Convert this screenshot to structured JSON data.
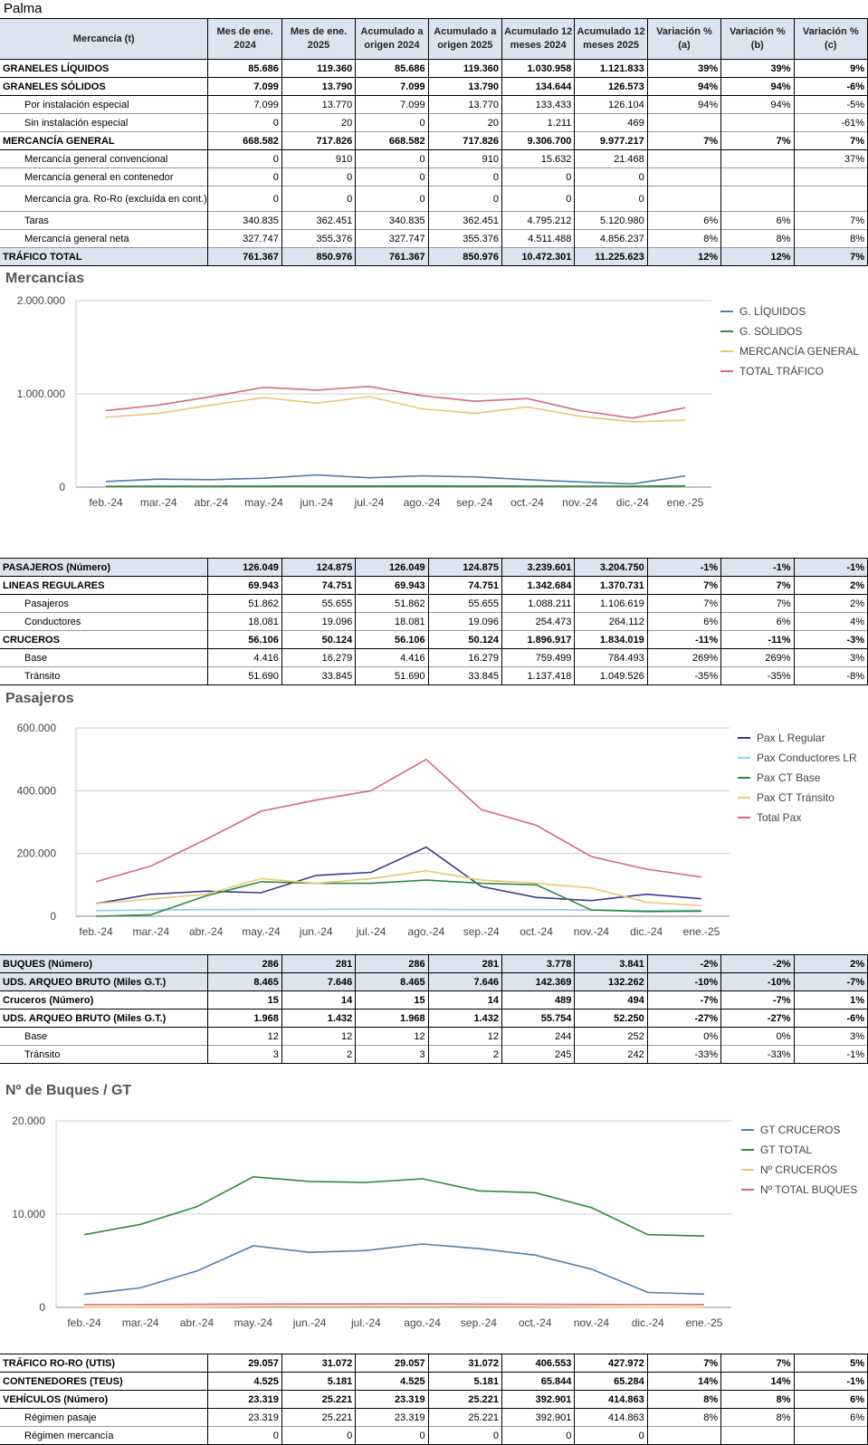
{
  "title": "Palma",
  "columns": [
    "Mercancía (t)",
    "Mes de ene. 2024",
    "Mes de ene. 2025",
    "Acumulado a origen 2024",
    "Acumulado a origen 2025",
    "Acumulado 12 meses 2024",
    "Acumulado 12 meses 2025",
    "Variación % (a)",
    "Variación % (b)",
    "Variación % (c)"
  ],
  "cargo_rows": [
    [
      "GRANELES LÍQUIDOS",
      "85.686",
      "119.360",
      "85.686",
      "119.360",
      "1.030.958",
      "1.121.833",
      "39%",
      "39%",
      "9%"
    ],
    [
      "GRANELES SÓLIDOS",
      "7.099",
      "13.790",
      "7.099",
      "13.790",
      "134.644",
      "126.573",
      "94%",
      "94%",
      "-6%"
    ],
    [
      "Por instalación especial",
      "7.099",
      "13.770",
      "7.099",
      "13.770",
      "133.433",
      "126.104",
      "94%",
      "94%",
      "-5%"
    ],
    [
      "Sin instalación especial",
      "0",
      "20",
      "0",
      "20",
      "1.211",
      "469",
      "",
      "",
      "-61%"
    ],
    [
      "MERCANCÍA GENERAL",
      "668.582",
      "717.826",
      "668.582",
      "717.826",
      "9.306.700",
      "9.977.217",
      "7%",
      "7%",
      "7%"
    ],
    [
      "Mercancía general convencional",
      "0",
      "910",
      "0",
      "910",
      "15.632",
      "21.468",
      "",
      "",
      "37%"
    ],
    [
      "Mercancía general en contenedor",
      "0",
      "0",
      "0",
      "0",
      "0",
      "0",
      "",
      "",
      ""
    ],
    [
      "Mercancía gra. Ro-Ro (excluída en cont.)",
      "0",
      "0",
      "0",
      "0",
      "0",
      "0",
      "",
      "",
      ""
    ],
    [
      "Taras",
      "340.835",
      "362.451",
      "340.835",
      "362.451",
      "4.795.212",
      "5.120.980",
      "6%",
      "6%",
      "7%"
    ],
    [
      "Mercancía general neta",
      "327.747",
      "355.376",
      "327.747",
      "355.376",
      "4.511.488",
      "4.856.237",
      "8%",
      "8%",
      "8%"
    ],
    [
      "TRÁFICO TOTAL",
      "761.367",
      "850.976",
      "761.367",
      "850.976",
      "10.472.301",
      "11.225.623",
      "12%",
      "12%",
      "7%"
    ]
  ],
  "pax_rows": [
    [
      "PASAJEROS (Número)",
      "126.049",
      "124.875",
      "126.049",
      "124.875",
      "3.239.601",
      "3.204.750",
      "-1%",
      "-1%",
      "-1%"
    ],
    [
      "LINEAS REGULARES",
      "69.943",
      "74.751",
      "69.943",
      "74.751",
      "1.342.684",
      "1.370.731",
      "7%",
      "7%",
      "2%"
    ],
    [
      "Pasajeros",
      "51.862",
      "55.655",
      "51.862",
      "55.655",
      "1.088.211",
      "1.106.619",
      "7%",
      "7%",
      "2%"
    ],
    [
      "Conductores",
      "18.081",
      "19.096",
      "18.081",
      "19.096",
      "254.473",
      "264.112",
      "6%",
      "6%",
      "4%"
    ],
    [
      "CRUCEROS",
      "56.106",
      "50.124",
      "56.106",
      "50.124",
      "1.896.917",
      "1.834.019",
      "-11%",
      "-11%",
      "-3%"
    ],
    [
      "Base",
      "4.416",
      "16.279",
      "4.416",
      "16.279",
      "759.499",
      "784.493",
      "269%",
      "269%",
      "3%"
    ],
    [
      "Tránsito",
      "51.690",
      "33.845",
      "51.690",
      "33.845",
      "1.137.418",
      "1.049.526",
      "-35%",
      "-35%",
      "-8%"
    ]
  ],
  "ship_rows": [
    [
      "BUQUES (Número)",
      "286",
      "281",
      "286",
      "281",
      "3.778",
      "3.841",
      "-2%",
      "-2%",
      "2%"
    ],
    [
      "UDS. ARQUEO BRUTO  (Miles G.T.)",
      "8.465",
      "7.646",
      "8.465",
      "7.646",
      "142.369",
      "132.262",
      "-10%",
      "-10%",
      "-7%"
    ],
    [
      "Cruceros (Número)",
      "15",
      "14",
      "15",
      "14",
      "489",
      "494",
      "-7%",
      "-7%",
      "1%"
    ],
    [
      "UDS. ARQUEO BRUTO  (Miles G.T.)",
      "1.968",
      "1.432",
      "1.968",
      "1.432",
      "55.754",
      "52.250",
      "-27%",
      "-27%",
      "-6%"
    ],
    [
      "Base",
      "12",
      "12",
      "12",
      "12",
      "244",
      "252",
      "0%",
      "0%",
      "3%"
    ],
    [
      "Tránsito",
      "3",
      "2",
      "3",
      "2",
      "245",
      "242",
      "-33%",
      "-33%",
      "-1%"
    ]
  ],
  "roro_rows": [
    [
      "TRÁFICO RO-RO (UTIS)",
      "29.057",
      "31.072",
      "29.057",
      "31.072",
      "406.553",
      "427.972",
      "7%",
      "7%",
      "5%"
    ],
    [
      "CONTENEDORES (TEUS)",
      "4.525",
      "5.181",
      "4.525",
      "5.181",
      "65.844",
      "65.284",
      "14%",
      "14%",
      "-1%"
    ],
    [
      "VEHÍCULOS (Número)",
      "23.319",
      "25.221",
      "23.319",
      "25.221",
      "392.901",
      "414.863",
      "8%",
      "8%",
      "6%"
    ],
    [
      "Régimen pasaje",
      "23.319",
      "25.221",
      "23.319",
      "25.221",
      "392.901",
      "414.863",
      "8%",
      "8%",
      "6%"
    ],
    [
      "Régimen mercancía",
      "0",
      "0",
      "0",
      "0",
      "0",
      "0",
      "",
      "",
      ""
    ]
  ],
  "chart_data": [
    {
      "type": "line",
      "title": "Mercancías",
      "categories": [
        "feb.-24",
        "mar.-24",
        "abr.-24",
        "may.-24",
        "jun.-24",
        "jul.-24",
        "ago.-24",
        "sep.-24",
        "oct.-24",
        "nov.-24",
        "dic.-24",
        "ene.-25"
      ],
      "ylim": [
        0,
        2000000
      ],
      "yticks": [
        0,
        1000000,
        2000000
      ],
      "ytick_labels": [
        "0",
        "1.000.000",
        "2.000.000"
      ],
      "series": [
        {
          "name": "G. LÍQUIDOS",
          "color": "#4e7fad",
          "values": [
            60000,
            85000,
            80000,
            95000,
            130000,
            100000,
            120000,
            110000,
            80000,
            55000,
            35000,
            119360
          ]
        },
        {
          "name": "G. SÓLIDOS",
          "color": "#2e8b3a",
          "values": [
            8000,
            9000,
            10000,
            11000,
            12000,
            12000,
            13000,
            12000,
            11000,
            10000,
            9000,
            13790
          ]
        },
        {
          "name": "MERCANCÍA GENERAL",
          "color": "#e8c878",
          "values": [
            750000,
            790000,
            880000,
            960000,
            900000,
            970000,
            840000,
            790000,
            860000,
            760000,
            700000,
            717826
          ]
        },
        {
          "name": "TOTAL TRÁFICO",
          "color": "#d9687a",
          "values": [
            820000,
            880000,
            970000,
            1070000,
            1040000,
            1080000,
            980000,
            920000,
            950000,
            820000,
            740000,
            850976
          ]
        }
      ]
    },
    {
      "type": "line",
      "title": "Pasajeros",
      "categories": [
        "feb.-24",
        "mar.-24",
        "abr.-24",
        "may.-24",
        "jun.-24",
        "jul.-24",
        "ago.-24",
        "sep.-24",
        "oct.-24",
        "nov.-24",
        "dic.-24",
        "ene.-25"
      ],
      "ylim": [
        0,
        600000
      ],
      "yticks": [
        0,
        200000,
        400000,
        600000
      ],
      "ytick_labels": [
        "0",
        "200.000",
        "400.000",
        "600.000"
      ],
      "series": [
        {
          "name": "Pax L Regular",
          "color": "#3a3a8f",
          "values": [
            40000,
            70000,
            80000,
            75000,
            130000,
            140000,
            220000,
            95000,
            60000,
            50000,
            70000,
            55655
          ]
        },
        {
          "name": "Pax Conductores LR",
          "color": "#8fcfef",
          "values": [
            18000,
            20000,
            21000,
            22000,
            22000,
            23000,
            22000,
            21000,
            21000,
            20000,
            18000,
            19096
          ]
        },
        {
          "name": "Pax CT Base",
          "color": "#2e8b3a",
          "values": [
            0,
            5000,
            65000,
            110000,
            105000,
            105000,
            115000,
            105000,
            100000,
            20000,
            15000,
            16279
          ]
        },
        {
          "name": "Pax CT Tránsito",
          "color": "#e8c878",
          "values": [
            40000,
            55000,
            70000,
            120000,
            105000,
            120000,
            145000,
            115000,
            105000,
            90000,
            45000,
            33845
          ]
        },
        {
          "name": "Total Pax",
          "color": "#d9687a",
          "values": [
            110000,
            160000,
            245000,
            335000,
            370000,
            400000,
            500000,
            340000,
            290000,
            190000,
            150000,
            124875
          ]
        }
      ]
    },
    {
      "type": "line",
      "title": "Nº de Buques / GT",
      "categories": [
        "feb.-24",
        "mar.-24",
        "abr.-24",
        "may.-24",
        "jun.-24",
        "jul.-24",
        "ago.-24",
        "sep.-24",
        "oct.-24",
        "nov.-24",
        "dic.-24",
        "ene.-25"
      ],
      "ylim": [
        0,
        20000
      ],
      "yticks": [
        0,
        10000,
        20000
      ],
      "ytick_labels": [
        "0",
        "10.000",
        "20.000"
      ],
      "series": [
        {
          "name": "GT CRUCEROS",
          "color": "#4e7fad",
          "values": [
            1400,
            2100,
            3900,
            6600,
            5900,
            6100,
            6800,
            6300,
            5600,
            4100,
            1600,
            1432
          ]
        },
        {
          "name": "GT TOTAL",
          "color": "#2e8b3a",
          "values": [
            7800,
            8900,
            10800,
            14000,
            13500,
            13400,
            13800,
            12500,
            12300,
            10700,
            7800,
            7646
          ]
        },
        {
          "name": "Nº CRUCEROS",
          "color": "#e8c878",
          "values": [
            20,
            30,
            60,
            100,
            90,
            95,
            100,
            95,
            90,
            60,
            20,
            14
          ]
        },
        {
          "name": "Nº TOTAL BUQUES",
          "color": "#d9687a",
          "values": [
            280,
            300,
            330,
            350,
            360,
            360,
            370,
            350,
            340,
            310,
            290,
            281
          ]
        }
      ]
    }
  ]
}
